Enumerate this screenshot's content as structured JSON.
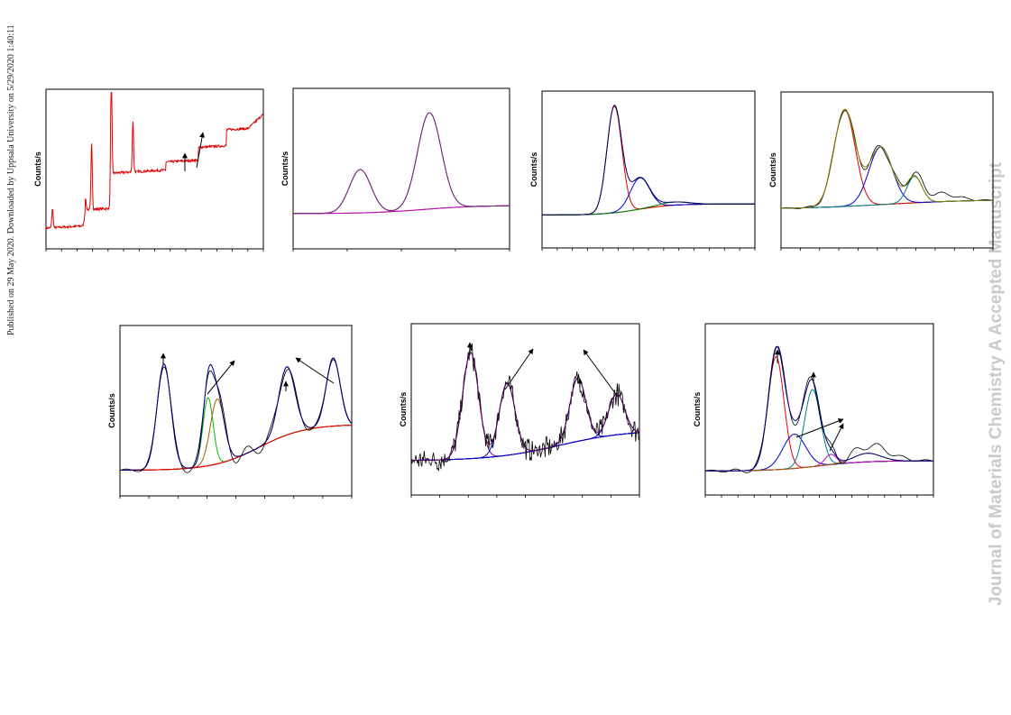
{
  "side_note": "Published on 29 May 2020. Downloaded by Uppsala University on 5/29/2020 1:40:11",
  "watermark": "Journal of Materials Chemistry A Accepted Manuscript",
  "panels": [
    {
      "y_label": "Counts/s"
    },
    {
      "y_label": "Counts/s"
    },
    {
      "y_label": "Counts/s"
    },
    {
      "y_label": "Counts/s"
    },
    {
      "y_label": "Counts/s"
    },
    {
      "y_label": "Counts/s"
    },
    {
      "y_label": "Counts/s"
    }
  ]
}
